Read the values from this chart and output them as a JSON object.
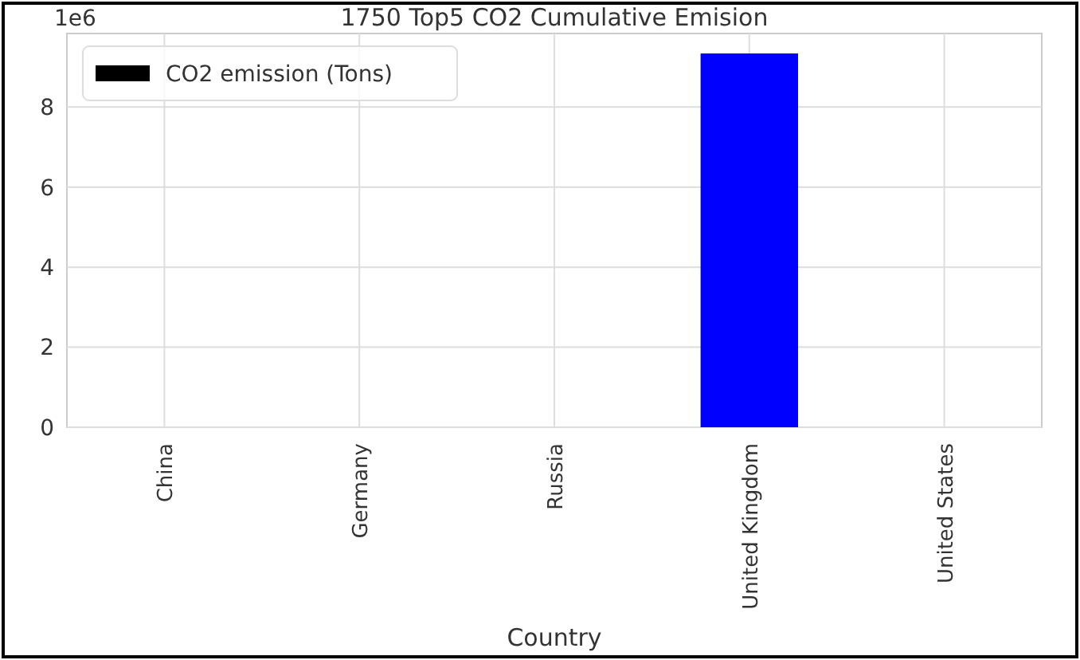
{
  "chart_data": {
    "type": "bar",
    "title": "1750 Top5 CO2 Cumulative Emision",
    "xlabel": "Country",
    "categories": [
      "China",
      "Germany",
      "Russia",
      "United Kingdom",
      "United States"
    ],
    "series": [
      {
        "name": "CO2 emission (Tons)",
        "color": "#000000",
        "colors": [
          "#000000",
          "#000000",
          "#000000",
          "#0000ff",
          "#000000"
        ],
        "values": [
          0,
          0,
          0,
          9.34,
          0
        ]
      }
    ],
    "ylim": [
      0,
      9.84
    ],
    "yticks": [
      0,
      2,
      4,
      6,
      8
    ],
    "annotations": [
      "1e6"
    ],
    "grid": true,
    "legend": "top left"
  }
}
